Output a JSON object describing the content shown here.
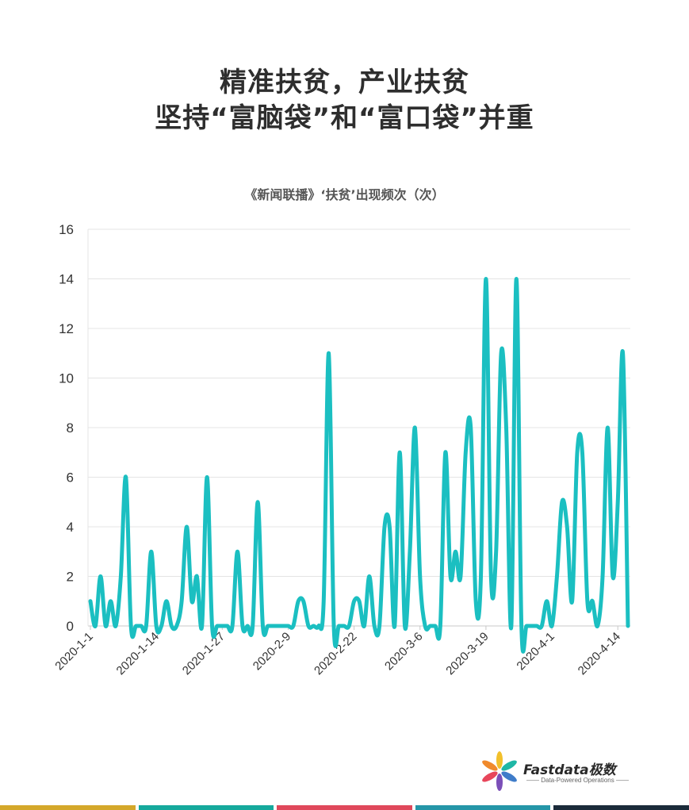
{
  "headline": {
    "line1": "精准扶贫，产业扶贫",
    "line2": "坚持“富脑袋”和“富口袋”并重"
  },
  "chart_data": {
    "type": "line",
    "title": "《新闻联播》‘扶贫’出现频次（次）",
    "xlabel": "",
    "ylabel": "",
    "ylim": [
      0,
      16
    ],
    "yticks": [
      "0",
      "2",
      "4",
      "6",
      "8",
      "10",
      "12",
      "14",
      "16"
    ],
    "x_tick_labels": [
      "2020-1-1",
      "2020-1-14",
      "2020-1-27",
      "2020-2-9",
      "2020-2-22",
      "2020-3-6",
      "2020-3-19",
      "2020-4-1",
      "2020-4-14"
    ],
    "grid": true,
    "line_color": "#1BBFC1",
    "x_start": "2020-1-1",
    "x_end": "2020-4-15",
    "values": [
      1,
      0,
      2,
      0,
      1,
      0,
      2,
      6,
      0,
      0,
      0,
      0,
      3,
      0,
      0,
      1,
      0,
      0,
      1,
      4,
      1,
      2,
      0,
      6,
      0,
      0,
      0,
      0,
      0,
      3,
      0,
      0,
      0,
      5,
      0,
      0,
      0,
      0,
      0,
      0,
      0,
      1,
      1,
      0,
      0,
      0,
      1,
      11,
      0,
      0,
      0,
      0,
      1,
      1,
      0,
      2,
      0,
      0,
      4,
      4,
      0,
      7,
      0,
      3,
      8,
      2,
      0,
      0,
      0,
      0,
      7,
      2,
      3,
      2,
      7,
      8,
      1,
      2,
      14,
      2,
      3,
      11,
      8,
      0,
      14,
      0,
      0,
      0,
      0,
      0,
      1,
      0,
      2,
      5,
      4,
      1,
      7,
      7,
      1,
      1,
      0,
      2,
      8,
      2,
      5,
      11,
      0
    ]
  },
  "logo": {
    "name": "Fastdata极数",
    "tagline": "—— Data-Powered Operations ——"
  },
  "colors": {
    "accent": "#1BBFC1",
    "bottom_bar": [
      "#D4A82A",
      "#15A99C",
      "#E0485B",
      "#2596A8",
      "#1B2B3A"
    ]
  }
}
